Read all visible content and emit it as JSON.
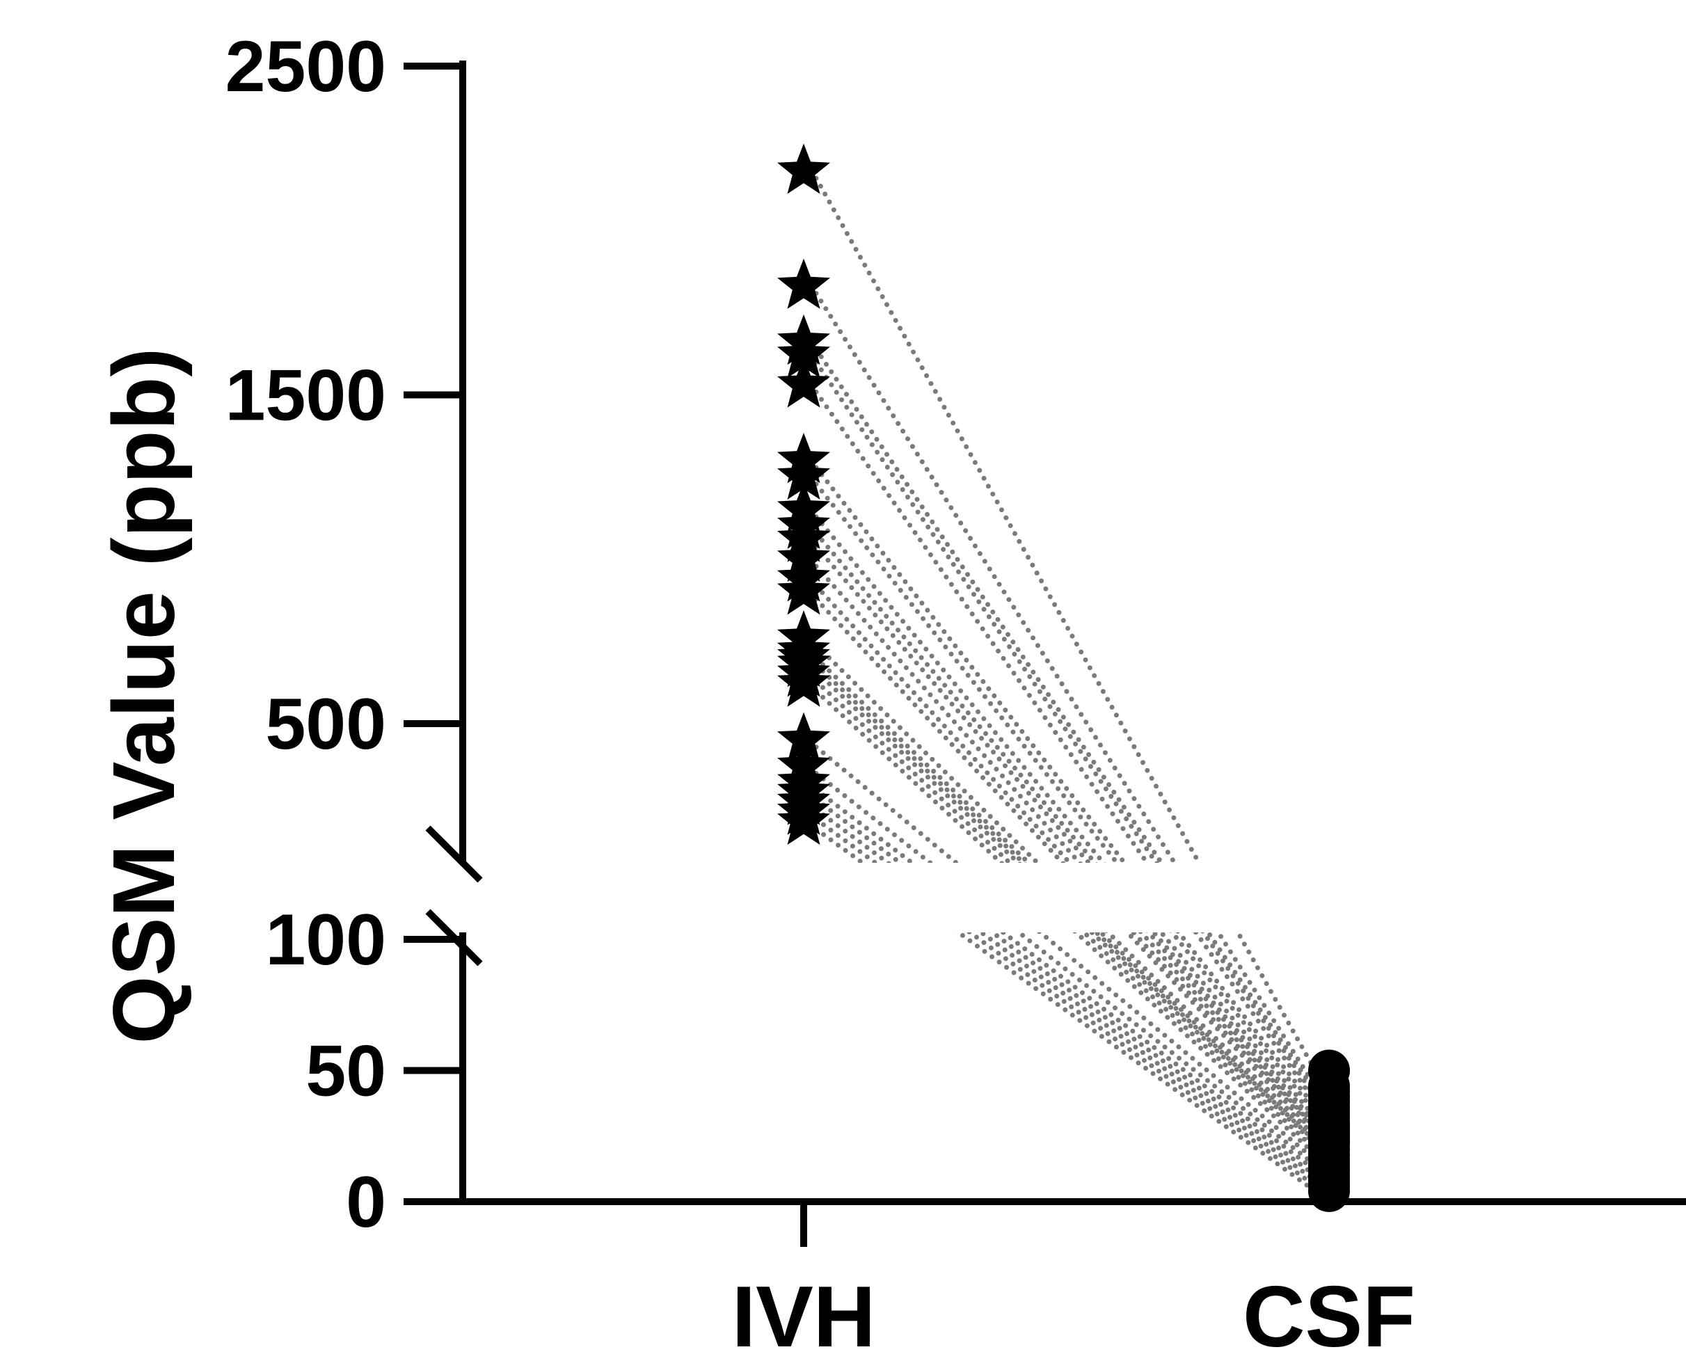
{
  "chart_data": {
    "type": "scatter",
    "subtype": "paired-before-after",
    "ylabel": "QSM Value (ppb)",
    "categories": [
      "IVH",
      "CSF"
    ],
    "axis_break": {
      "lower_segment_max": 100,
      "upper_segment_min": 200
    },
    "y_ticks": [
      0,
      50,
      100,
      500,
      1500,
      2500
    ],
    "y_tick_labels": [
      "0",
      "50",
      "100",
      "500",
      "1500",
      "2500"
    ],
    "ylim_lower": [
      0,
      100
    ],
    "ylim_upper": [
      200,
      2500
    ],
    "series": [
      {
        "name": "IVH",
        "marker": "star",
        "values": [
          2180,
          1830,
          1660,
          1620,
          1530,
          1300,
          1250,
          1150,
          1100,
          1060,
          1000,
          940,
          900,
          760,
          720,
          700,
          680,
          650,
          620,
          450,
          370,
          320,
          290,
          260,
          230,
          200
        ]
      },
      {
        "name": "CSF",
        "marker": "circle",
        "values": [
          50,
          44,
          42,
          40,
          38,
          36,
          34,
          32,
          30,
          29,
          28,
          27,
          26,
          25,
          24,
          23,
          22,
          20,
          18,
          16,
          14,
          12,
          10,
          8,
          6,
          4
        ]
      }
    ],
    "colors": {
      "markers": "#000000",
      "pair_lines": "#7a7a7a",
      "axes": "#000000"
    }
  }
}
